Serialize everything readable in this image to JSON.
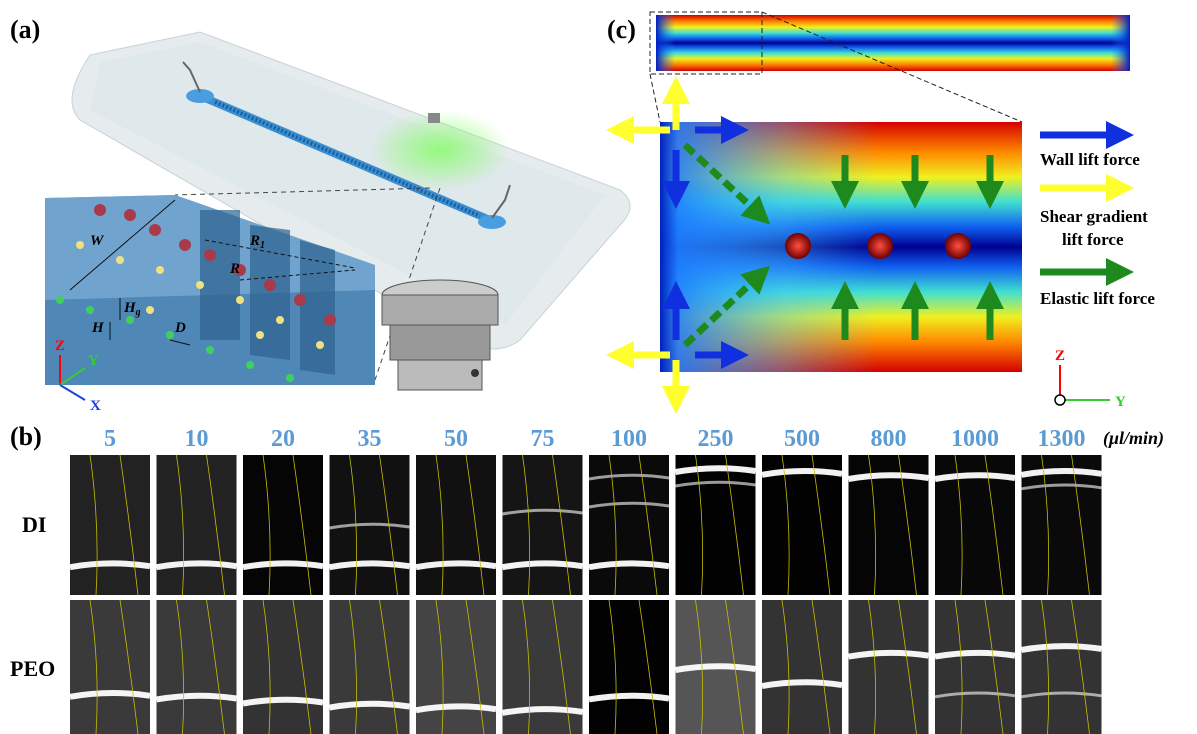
{
  "panels": {
    "a": {
      "label": "(a)",
      "dims": {
        "W": "W",
        "R1": "R",
        "R1_sub": "1",
        "R": "R",
        "Hg": "H",
        "Hg_sub": "g",
        "H": "H",
        "D": "D"
      },
      "axes": {
        "z": "Z",
        "y": "Y",
        "x": "X"
      }
    },
    "b": {
      "label": "(b)",
      "flow_rates": [
        "5",
        "10",
        "20",
        "35",
        "50",
        "75",
        "100",
        "250",
        "500",
        "800",
        "1000",
        "1300"
      ],
      "unit": "(μl/min)",
      "rows": [
        "DI",
        "PEO"
      ]
    },
    "c": {
      "label": "(c)",
      "legend": {
        "wall": "Wall lift force",
        "shear_1": "Shear gradient",
        "shear_2": "lift force",
        "elastic": "Elastic lift force"
      },
      "axes": {
        "z": "Z",
        "y": "Y"
      }
    }
  }
}
